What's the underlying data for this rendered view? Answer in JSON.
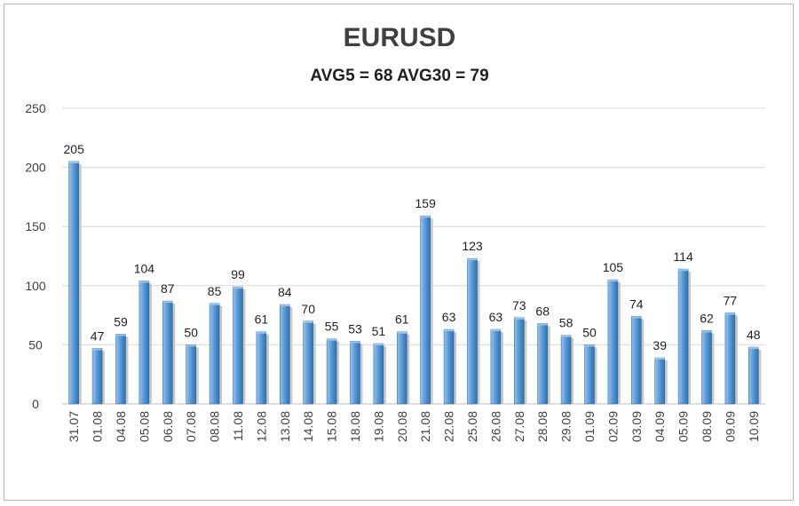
{
  "chart_data": {
    "type": "bar",
    "title": "EURUSD",
    "subtitle": "AVG5 = 68 AVG30 = 79",
    "xlabel": "",
    "ylabel": "",
    "ylim": [
      0,
      250
    ],
    "yticks": [
      "0",
      "50",
      "100",
      "150",
      "200",
      "250"
    ],
    "grid": true,
    "categories": [
      "31.07",
      "01.08",
      "04.08",
      "05.08",
      "06.08",
      "07.08",
      "08.08",
      "11.08",
      "12.08",
      "13.08",
      "14.08",
      "15.08",
      "18.08",
      "19.08",
      "20.08",
      "21.08",
      "22.08",
      "25.08",
      "26.08",
      "27.08",
      "28.08",
      "29.08",
      "01.09",
      "02.09",
      "03.09",
      "04.09",
      "05.09",
      "08.09",
      "09.09",
      "10.09"
    ],
    "values": [
      205,
      47,
      59,
      104,
      87,
      50,
      85,
      99,
      61,
      84,
      70,
      55,
      53,
      51,
      61,
      159,
      63,
      123,
      63,
      73,
      68,
      58,
      50,
      105,
      74,
      39,
      114,
      62,
      77,
      48
    ],
    "colors": {
      "bar": "#5b9bd5",
      "bar_light": "#9cc3ea",
      "bar_dark": "#2f6fae",
      "grid": "#d9d9d9"
    }
  }
}
